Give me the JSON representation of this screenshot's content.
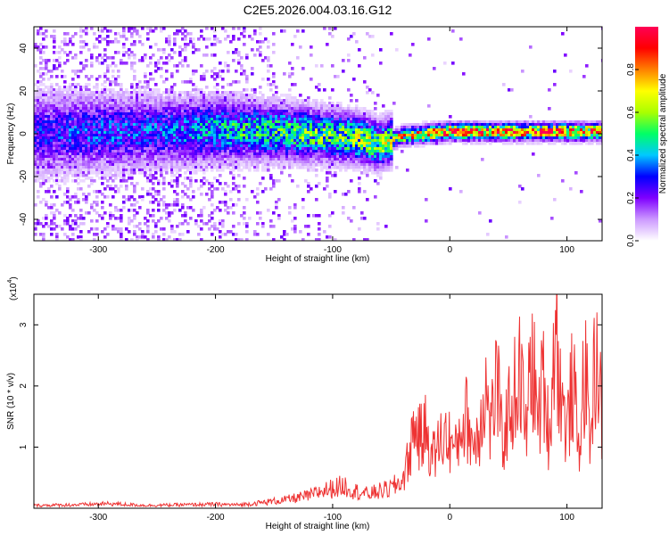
{
  "title": "C2E5.2026.004.03.16.G12",
  "chart_data": [
    {
      "type": "heatmap",
      "xlabel": "Height of straight line (km)",
      "ylabel": "Frequency (Hz)",
      "xlim": [
        -355,
        130
      ],
      "ylim": [
        -50,
        50
      ],
      "xticks": [
        -300,
        -200,
        -100,
        0,
        100
      ],
      "yticks": [
        -40,
        -20,
        0,
        20,
        40
      ],
      "ridge": {
        "x": [
          -355,
          -300,
          -250,
          -200,
          -150,
          -100,
          -80,
          -60,
          -50,
          -40,
          -20,
          0,
          50,
          100,
          130
        ],
        "center_freq": [
          0,
          1,
          1,
          2,
          1,
          -1,
          -2,
          -5,
          -3,
          -1,
          0,
          1,
          1,
          1,
          1
        ],
        "peak_amplitude": [
          0.25,
          0.3,
          0.3,
          0.4,
          0.45,
          0.5,
          0.55,
          0.55,
          0.6,
          0.7,
          0.8,
          0.85,
          0.85,
          0.85,
          0.8
        ]
      },
      "colorbar": {
        "label": "Normalized spectral amplitude",
        "range": [
          0.0,
          1.0
        ],
        "ticks": [
          "0.0",
          "0.2",
          "0.4",
          "0.6",
          "0.8"
        ],
        "colors": [
          "#ffffff",
          "#cc99ff",
          "#7f00ff",
          "#0000ff",
          "#00c8ff",
          "#00ff66",
          "#aaff00",
          "#ffff00",
          "#ff8000",
          "#ff0000",
          "#ff0055"
        ]
      }
    },
    {
      "type": "line",
      "xlabel": "Height of straight line (km)",
      "ylabel": "SNR (10 * v/v)",
      "yscale_label": "(x10",
      "yscale_exp": "4",
      "xlim": [
        -355,
        130
      ],
      "ylim": [
        0,
        3.5
      ],
      "xticks": [
        -300,
        -200,
        -100,
        0,
        100
      ],
      "yticks": [
        1,
        2,
        3
      ],
      "color": "#ee3333",
      "series": [
        {
          "name": "SNR",
          "x": [
            -355,
            -320,
            -290,
            -260,
            -230,
            -200,
            -180,
            -160,
            -140,
            -120,
            -110,
            -100,
            -90,
            -80,
            -70,
            -60,
            -50,
            -40,
            -35,
            -30,
            -25,
            -20,
            -15,
            -10,
            -5,
            0,
            5,
            10,
            15,
            20,
            25,
            30,
            35,
            40,
            45,
            50,
            55,
            60,
            65,
            70,
            75,
            80,
            85,
            90,
            95,
            100,
            105,
            110,
            115,
            120,
            125,
            130
          ],
          "values": [
            0.05,
            0.06,
            0.08,
            0.05,
            0.06,
            0.07,
            0.06,
            0.1,
            0.15,
            0.22,
            0.3,
            0.35,
            0.4,
            0.3,
            0.25,
            0.3,
            0.35,
            0.5,
            0.9,
            1.5,
            1.2,
            1.4,
            0.9,
            1.1,
            1.3,
            1.2,
            1.0,
            1.5,
            1.6,
            1.1,
            1.4,
            2.2,
            1.4,
            2.3,
            1.1,
            1.7,
            2.0,
            2.4,
            1.3,
            2.8,
            1.5,
            2.3,
            1.2,
            3.4,
            2.0,
            1.3,
            2.3,
            1.0,
            2.5,
            1.2,
            2.9,
            1.5
          ]
        }
      ]
    }
  ]
}
